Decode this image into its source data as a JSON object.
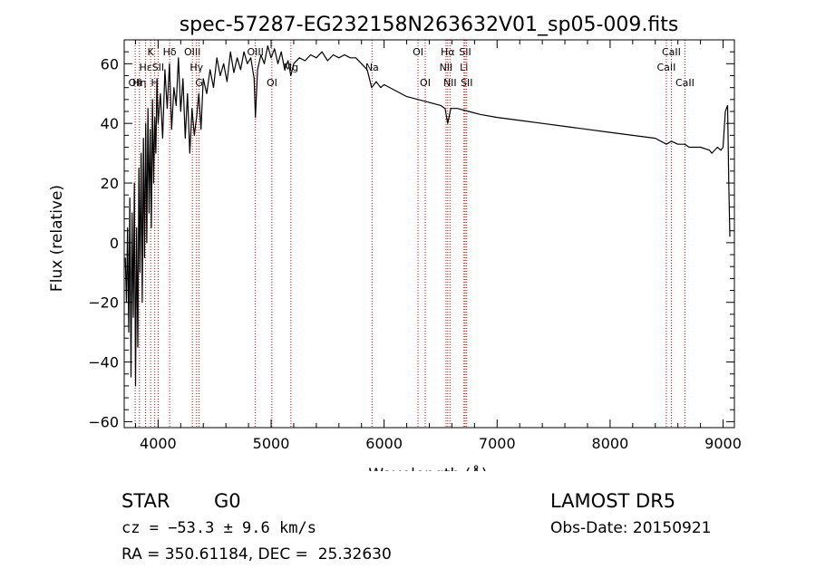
{
  "chart_data": {
    "type": "line",
    "title": "spec-57287-EG232158N263632V01_sp05-009.fits",
    "xlabel": "Wavelength (Å)",
    "ylabel": "Flux (relative)",
    "xlim": [
      3700,
      9100
    ],
    "ylim": [
      -62,
      68
    ],
    "x_ticks": [
      4000,
      5000,
      6000,
      7000,
      8000,
      9000
    ],
    "y_ticks": [
      -60,
      -40,
      -20,
      0,
      20,
      40,
      60
    ],
    "y_tick_labels": [
      "−60",
      "−40",
      "−20",
      "0",
      "20",
      "40",
      "60"
    ],
    "grid": false,
    "line_color": "#000000",
    "marker_line_color": "#cc0000",
    "series": [
      {
        "x": [
          3710,
          3720,
          3730,
          3740,
          3750,
          3760,
          3770,
          3780,
          3790,
          3800,
          3810,
          3820,
          3830,
          3840,
          3850,
          3860,
          3870,
          3880,
          3890,
          3900,
          3910,
          3920,
          3930,
          3940,
          3950,
          3960,
          3970,
          3980,
          3990,
          4000,
          4020,
          4040,
          4060,
          4080,
          4100,
          4120,
          4140,
          4160,
          4180,
          4200,
          4220,
          4240,
          4260,
          4280,
          4300,
          4320,
          4340,
          4360,
          4380,
          4400,
          4430,
          4460,
          4490,
          4520,
          4550,
          4580,
          4610,
          4640,
          4670,
          4700,
          4730,
          4760,
          4790,
          4820,
          4850,
          4861,
          4880,
          4910,
          4940,
          4970,
          5000,
          5030,
          5060,
          5090,
          5120,
          5150,
          5175,
          5200,
          5250,
          5300,
          5350,
          5400,
          5450,
          5500,
          5550,
          5600,
          5650,
          5700,
          5750,
          5800,
          5850,
          5890,
          5930,
          5970,
          6000,
          6100,
          6200,
          6300,
          6400,
          6500,
          6540,
          6563,
          6590,
          6650,
          6750,
          6850,
          7000,
          7200,
          7400,
          7600,
          7800,
          8000,
          8200,
          8400,
          8498,
          8542,
          8600,
          8662,
          8700,
          8800,
          8880,
          8900,
          8950,
          8980,
          9000,
          9020,
          9040,
          9050,
          9060
        ],
        "y": [
          -5,
          -20,
          5,
          -30,
          15,
          -45,
          10,
          -25,
          20,
          -48,
          5,
          -35,
          25,
          -10,
          30,
          -20,
          35,
          -5,
          40,
          0,
          45,
          10,
          38,
          5,
          48,
          20,
          42,
          30,
          55,
          40,
          50,
          35,
          58,
          45,
          60,
          38,
          52,
          46,
          62,
          44,
          55,
          35,
          50,
          30,
          45,
          36,
          42,
          50,
          38,
          55,
          50,
          58,
          52,
          62,
          56,
          60,
          54,
          64,
          57,
          62,
          58,
          64,
          60,
          62,
          55,
          42,
          58,
          63,
          60,
          66,
          62,
          65,
          60,
          64,
          58,
          61,
          56,
          60,
          62,
          61,
          63,
          62,
          64,
          61,
          63,
          62,
          63,
          62,
          62,
          60,
          58,
          52,
          54,
          52,
          53,
          51,
          49,
          48,
          47,
          46,
          45,
          40,
          45,
          45,
          44,
          43,
          42,
          41,
          40,
          39,
          38,
          37,
          36,
          35,
          33,
          34,
          33,
          33,
          32,
          32,
          31,
          30,
          32,
          31,
          32,
          44,
          46,
          20,
          2
        ]
      }
    ],
    "line_markers": [
      {
        "x": 3797,
        "label": "OII",
        "row": 2
      },
      {
        "x": 3835,
        "label": "Hη",
        "row": 2
      },
      {
        "x": 3889,
        "label": "Hε",
        "row": 1
      },
      {
        "x": 3934,
        "label": "K",
        "row": 0
      },
      {
        "x": 3970,
        "label": "H",
        "row": 2
      },
      {
        "x": 4000,
        "label": "SII",
        "row": 1
      },
      {
        "x": 4102,
        "label": "Hδ",
        "row": 0
      },
      {
        "x": 4303,
        "label": "OIII",
        "row": 0
      },
      {
        "x": 4340,
        "label": "Hγ",
        "row": 1
      },
      {
        "x": 4363,
        "label": "G",
        "row": 2
      },
      {
        "x": 4861,
        "label": "OIII",
        "row": 0
      },
      {
        "x": 5007,
        "label": "OI",
        "row": 2
      },
      {
        "x": 5175,
        "label": "Mg",
        "row": 1
      },
      {
        "x": 5893,
        "label": "Na",
        "row": 1
      },
      {
        "x": 6300,
        "label": "OI",
        "row": 0
      },
      {
        "x": 6364,
        "label": "OI",
        "row": 2
      },
      {
        "x": 6548,
        "label": "NII",
        "row": 1
      },
      {
        "x": 6563,
        "label": "Hα",
        "row": 0
      },
      {
        "x": 6583,
        "label": "NII",
        "row": 2
      },
      {
        "x": 6707,
        "label": "Li",
        "row": 1
      },
      {
        "x": 6717,
        "label": "SII",
        "row": 0
      },
      {
        "x": 6731,
        "label": "SII",
        "row": 2
      },
      {
        "x": 8498,
        "label": "CaII",
        "row": 1
      },
      {
        "x": 8542,
        "label": "CaII",
        "row": 0
      },
      {
        "x": 8662,
        "label": "CaII",
        "row": 2
      }
    ]
  },
  "footer": {
    "class_label": "STAR",
    "subclass_label": "G0",
    "survey": "LAMOST DR5",
    "redshift_text": "cz = −53.3 ± 9.6 km/s",
    "obs_date": "Obs-Date: 20150921",
    "coords": "RA = 350.61184, DEC =  25.32630"
  }
}
